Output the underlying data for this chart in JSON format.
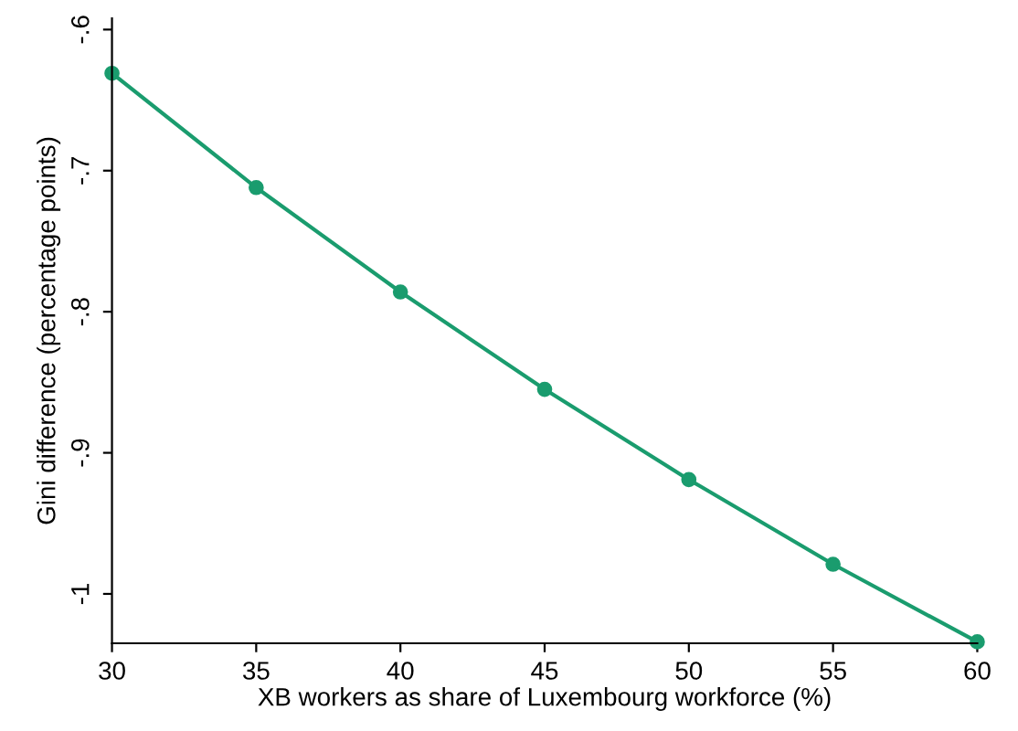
{
  "chart_data": {
    "type": "line",
    "xlabel": "XB workers as share of Luxembourg workforce (%)",
    "ylabel": "Gini difference (percentage points)",
    "x": [
      30,
      35,
      40,
      45,
      50,
      55,
      60
    ],
    "series": [
      {
        "color": "#1a9c6e",
        "values": [
          -0.631,
          -0.712,
          -0.786,
          -0.855,
          -0.919,
          -0.979,
          -1.034
        ]
      }
    ],
    "xlim": [
      30,
      60
    ],
    "xticks": [
      30,
      35,
      40,
      45,
      50,
      55,
      60
    ],
    "ylim": [
      -1.035,
      -0.592
    ],
    "yticks": [
      {
        "value": -1,
        "label": "-1"
      },
      {
        "value": -0.9,
        "label": "-.9"
      },
      {
        "value": -0.8,
        "label": "-.8"
      },
      {
        "value": -0.7,
        "label": "-.7"
      },
      {
        "value": -0.6,
        "label": "-.6"
      }
    ],
    "marker": "circle",
    "line_style": "solid",
    "grid": false,
    "legend": false
  }
}
